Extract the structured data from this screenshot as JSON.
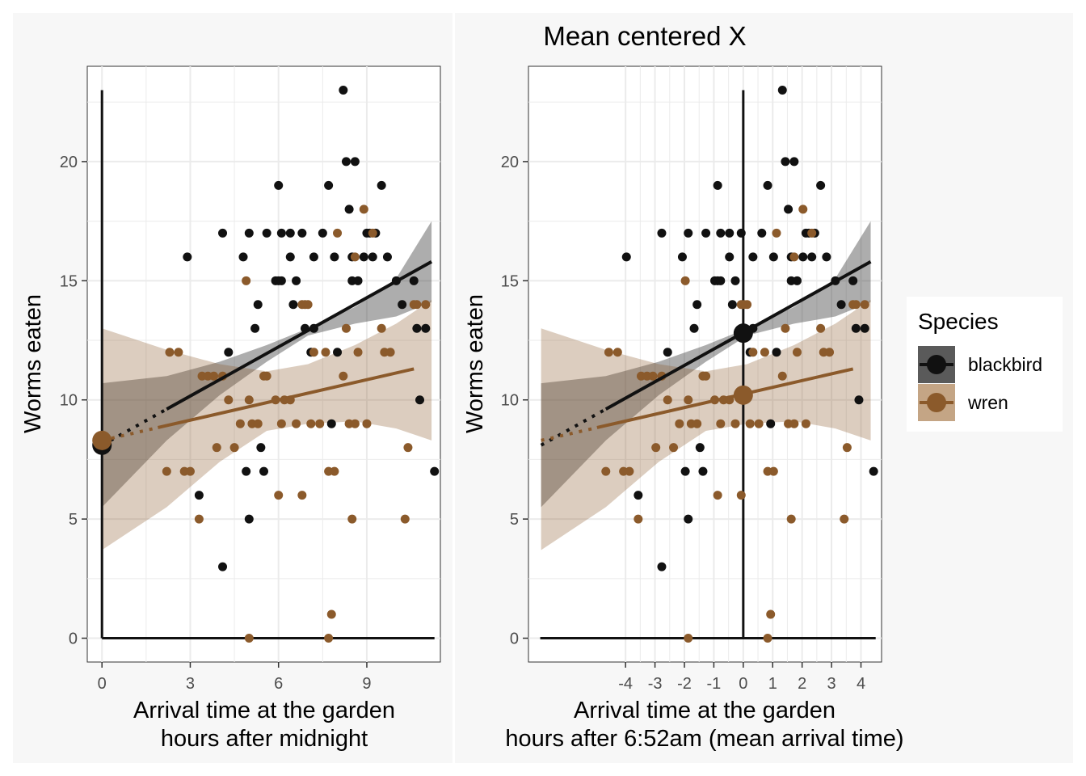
{
  "colors": {
    "blackbird": "#111111",
    "wren": "#8B5A2B",
    "panel_bg": "#F7F7F7",
    "plot_bg": "#FFFFFF",
    "grid": "#EBEBEB",
    "ribbon_blackbird": "#333333",
    "ribbon_wren": "#8B5A2B"
  },
  "legend": {
    "title": "Species",
    "items": [
      {
        "key": "blackbird",
        "label": "blackbird"
      },
      {
        "key": "wren",
        "label": "wren"
      }
    ],
    "position": "right"
  },
  "chart_data": [
    {
      "type": "scatter",
      "title": "",
      "xlabel": "Arrival time at the garden\nhours after midnight",
      "ylabel": "Worms eaten",
      "xlim": [
        -0.5,
        11.5
      ],
      "ylim": [
        -1,
        24
      ],
      "xticks": [
        0,
        3,
        6,
        9
      ],
      "xtick_labels": [
        "0",
        "3",
        "6",
        "9"
      ],
      "yticks": [
        0,
        5,
        10,
        15,
        20
      ],
      "yaxis_lines": {
        "vertical_at_x": 0,
        "horizontal_at_y": 0,
        "vertical_top": 23,
        "horizontal_right": 11.3
      },
      "intercepts": [
        {
          "species": "blackbird",
          "x": 0,
          "y": 8.1
        },
        {
          "species": "wren",
          "x": 0,
          "y": 8.3
        }
      ],
      "series": [
        {
          "name": "blackbird",
          "points": [
            [
              2.9,
              16
            ],
            [
              3.3,
              6
            ],
            [
              4.1,
              17
            ],
            [
              4.1,
              3
            ],
            [
              4.3,
              12
            ],
            [
              4.8,
              16
            ],
            [
              4.9,
              7
            ],
            [
              5.0,
              5
            ],
            [
              5.0,
              17
            ],
            [
              5.2,
              13
            ],
            [
              5.3,
              14
            ],
            [
              5.4,
              8
            ],
            [
              5.5,
              7
            ],
            [
              5.6,
              17
            ],
            [
              5.9,
              15
            ],
            [
              6.0,
              15
            ],
            [
              6.0,
              19
            ],
            [
              6.1,
              17
            ],
            [
              6.1,
              15
            ],
            [
              6.4,
              16
            ],
            [
              6.4,
              17
            ],
            [
              6.5,
              14
            ],
            [
              6.6,
              15
            ],
            [
              6.8,
              17
            ],
            [
              6.9,
              13
            ],
            [
              7.1,
              12
            ],
            [
              7.2,
              13
            ],
            [
              7.2,
              16
            ],
            [
              7.5,
              17
            ],
            [
              7.7,
              19
            ],
            [
              7.8,
              9
            ],
            [
              7.9,
              16
            ],
            [
              8.0,
              12
            ],
            [
              8.2,
              23
            ],
            [
              8.3,
              20
            ],
            [
              8.4,
              18
            ],
            [
              8.5,
              16
            ],
            [
              8.5,
              15
            ],
            [
              8.6,
              20
            ],
            [
              8.7,
              15
            ],
            [
              8.9,
              16
            ],
            [
              9.0,
              17
            ],
            [
              9.1,
              17
            ],
            [
              9.2,
              16
            ],
            [
              9.3,
              17
            ],
            [
              9.5,
              19
            ],
            [
              9.7,
              16
            ],
            [
              10.0,
              15
            ],
            [
              10.2,
              14
            ],
            [
              10.6,
              15
            ],
            [
              10.8,
              10
            ],
            [
              11.0,
              13
            ],
            [
              11.3,
              7
            ],
            [
              10.7,
              13
            ]
          ],
          "fit": {
            "x_start": 0,
            "x_dotted_end": 2.2,
            "x_end": 11.2,
            "y_at_0": 8.1,
            "y_at_end": 15.8
          },
          "ribbon": {
            "x_start": 0,
            "x_dotted_end": 2.2,
            "x_end": 11.2,
            "upper": [
              [
                0,
                10.7
              ],
              [
                2.2,
                11.0
              ],
              [
                4.0,
                11.6
              ],
              [
                5.6,
                12.3
              ],
              [
                7.0,
                13.0
              ],
              [
                8.6,
                13.9
              ],
              [
                10.0,
                15.1
              ],
              [
                11.2,
                17.5
              ]
            ],
            "lower": [
              [
                0,
                5.5
              ],
              [
                2.2,
                8.3
              ],
              [
                4.0,
                10.2
              ],
              [
                5.6,
                11.6
              ],
              [
                7.0,
                12.7
              ],
              [
                8.6,
                13.2
              ],
              [
                10.0,
                13.5
              ],
              [
                11.2,
                14.1
              ]
            ]
          }
        },
        {
          "name": "wren",
          "points": [
            [
              2.2,
              7
            ],
            [
              2.3,
              12
            ],
            [
              2.6,
              12
            ],
            [
              2.8,
              7
            ],
            [
              3.0,
              7
            ],
            [
              3.3,
              5
            ],
            [
              3.4,
              11
            ],
            [
              3.6,
              11
            ],
            [
              3.8,
              11
            ],
            [
              3.9,
              8
            ],
            [
              4.1,
              11
            ],
            [
              4.3,
              10
            ],
            [
              4.5,
              8
            ],
            [
              4.7,
              9
            ],
            [
              4.9,
              15
            ],
            [
              5.0,
              0
            ],
            [
              5.0,
              10
            ],
            [
              5.1,
              9
            ],
            [
              5.3,
              9
            ],
            [
              5.5,
              11
            ],
            [
              5.6,
              11
            ],
            [
              5.9,
              10
            ],
            [
              6.0,
              6
            ],
            [
              6.1,
              9
            ],
            [
              6.2,
              10
            ],
            [
              6.4,
              10
            ],
            [
              6.6,
              9
            ],
            [
              6.8,
              14
            ],
            [
              6.8,
              6
            ],
            [
              6.9,
              14
            ],
            [
              7.0,
              14
            ],
            [
              7.1,
              9
            ],
            [
              7.2,
              12
            ],
            [
              7.4,
              9
            ],
            [
              7.6,
              12
            ],
            [
              7.7,
              7
            ],
            [
              7.7,
              0
            ],
            [
              7.8,
              1
            ],
            [
              7.9,
              7
            ],
            [
              8.0,
              17
            ],
            [
              8.2,
              11
            ],
            [
              8.3,
              13
            ],
            [
              8.4,
              9
            ],
            [
              8.5,
              5
            ],
            [
              8.6,
              16
            ],
            [
              8.6,
              9
            ],
            [
              8.7,
              12
            ],
            [
              8.9,
              18
            ],
            [
              9.0,
              9
            ],
            [
              9.2,
              17
            ],
            [
              9.5,
              13
            ],
            [
              9.6,
              12
            ],
            [
              9.8,
              12
            ],
            [
              10.3,
              5
            ],
            [
              10.4,
              8
            ],
            [
              10.6,
              14
            ],
            [
              10.7,
              14
            ],
            [
              11.0,
              14
            ]
          ],
          "fit": {
            "x_start": 0,
            "x_dotted_end": 1.9,
            "x_end": 10.6,
            "y_at_0": 8.3,
            "y_at_end": 11.3
          },
          "ribbon": {
            "x_start": 0,
            "x_end": 11.2,
            "x_inner_end": 10.6,
            "x_inner_start": 2.2,
            "upper": [
              [
                0,
                13.0
              ],
              [
                2.2,
                12.1
              ],
              [
                4.0,
                11.5
              ],
              [
                5.6,
                11.2
              ],
              [
                7.0,
                11.5
              ],
              [
                8.6,
                12.3
              ],
              [
                10.0,
                13.2
              ],
              [
                11.2,
                14.2
              ]
            ],
            "lower": [
              [
                0,
                3.7
              ],
              [
                2.2,
                5.5
              ],
              [
                4.0,
                7.4
              ],
              [
                5.6,
                8.7
              ],
              [
                7.0,
                9.0
              ],
              [
                8.6,
                9.1
              ],
              [
                10.0,
                8.8
              ],
              [
                11.2,
                8.3
              ]
            ]
          }
        }
      ]
    },
    {
      "type": "scatter",
      "title": "Mean centered X",
      "xlabel": "Arrival time at the garden\nhours after 6:52am (mean arrival time)",
      "ylabel": "Worms eaten",
      "xlim": [
        -7.3,
        4.7
      ],
      "ylim": [
        -1,
        24
      ],
      "xticks": [
        -4,
        -3,
        -2,
        -1,
        0,
        1,
        2,
        3,
        4
      ],
      "xtick_labels": [
        "-4",
        "-3",
        "-2",
        "-1",
        "0",
        "1",
        "2",
        "3",
        "4"
      ],
      "yticks": [
        0,
        5,
        10,
        15,
        20
      ],
      "yaxis_lines": {
        "vertical_at_x": 0,
        "horizontal_at_y": 0,
        "vertical_top": 23,
        "horizontal_left": -6.9,
        "horizontal_right": 4.5
      },
      "intercepts": [
        {
          "species": "blackbird",
          "x": 0,
          "y": 12.8
        },
        {
          "species": "wren",
          "x": 0,
          "y": 10.2
        }
      ],
      "x_shift": -6.87
    }
  ]
}
